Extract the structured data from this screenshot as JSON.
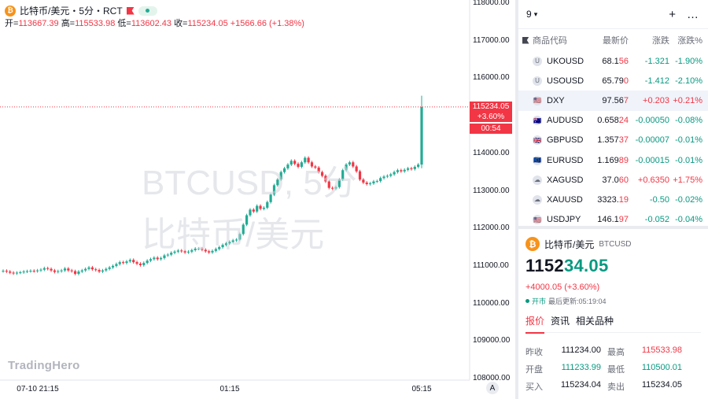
{
  "chart": {
    "title": "比特币/美元・5分・RCT",
    "ohlc": {
      "open_label": "开=",
      "open": "113667.39",
      "high_label": "高=",
      "high": "115533.98",
      "low_label": "低=",
      "low": "113602.43",
      "close_label": "收=",
      "close": "115234.05",
      "change": "+1566.66 (+1.38%)"
    },
    "watermark_symbol": "BTCUSD, 5分",
    "watermark_name": "比特币/美元",
    "brand": "TradingHero",
    "current_price": "115234.05",
    "current_change": "+3.60%",
    "countdown": "00:54",
    "y_ticks": [
      "118000.00",
      "117000.00",
      "116000.00",
      "114000.00",
      "113000.00",
      "112000.00",
      "111000.00",
      "110000.00",
      "109000.00",
      "108000.00"
    ],
    "x_ticks": [
      "07-10 21:15",
      "01:15",
      "05:15"
    ],
    "a_button": "A",
    "colors": {
      "up": "#22ab94",
      "down": "#f23645"
    }
  },
  "chart_data": {
    "type": "candlestick",
    "ylim": [
      108000,
      118000
    ],
    "last_close": 115234.05,
    "closes": [
      110870,
      110850,
      110820,
      110800,
      110820,
      110830,
      110850,
      110860,
      110870,
      110860,
      110880,
      110900,
      110940,
      110920,
      110880,
      110840,
      110860,
      110880,
      110930,
      110880,
      110860,
      110790,
      110850,
      110880,
      110920,
      110960,
      110910,
      110890,
      110850,
      110880,
      110920,
      110960,
      111000,
      111050,
      111100,
      111080,
      111120,
      111160,
      111100,
      111060,
      111020,
      111080,
      111140,
      111180,
      111220,
      111180,
      111210,
      111280,
      111300,
      111350,
      111380,
      111410,
      111390,
      111360,
      111380,
      111420,
      111460,
      111460,
      111430,
      111390,
      111360,
      111400,
      111450,
      111500,
      111560,
      111600,
      111640,
      111680,
      111700,
      111850,
      112100,
      112350,
      112500,
      112450,
      112600,
      112520,
      112550,
      112700,
      112900,
      113150,
      113300,
      113500,
      113600,
      113700,
      113800,
      113720,
      113640,
      113760,
      113880,
      113760,
      113650,
      113620,
      113500,
      113400,
      113250,
      113080,
      113060,
      113100,
      113300,
      113550,
      113700,
      113760,
      113650,
      113520,
      113300,
      113220,
      113180,
      113200,
      113250,
      113260,
      113340,
      113380,
      113400,
      113440,
      113500,
      113550,
      113520,
      113560,
      113600,
      113580,
      113640,
      113700,
      115234
    ],
    "high": 115533.98,
    "low": 110500.01
  },
  "watchlist": {
    "selector": "9",
    "add_icon": "+",
    "more_icon": "…",
    "headers": [
      "商品代码",
      "最新价",
      "涨跌",
      "涨跌%"
    ],
    "rows": [
      {
        "sym": "UKOUSD",
        "icon": "U",
        "price_a": "68.1",
        "price_b": "56",
        "chg": "-1.321",
        "pct": "-1.90%",
        "dir": "dn"
      },
      {
        "sym": "USOUSD",
        "icon": "U",
        "price_a": "65.79",
        "price_b": "0",
        "chg": "-1.412",
        "pct": "-2.10%",
        "dir": "dn"
      },
      {
        "sym": "DXY",
        "icon": "🇺🇸",
        "price_a": "97.56",
        "price_b": "7",
        "chg": "+0.203",
        "pct": "+0.21%",
        "dir": "up",
        "flag": true
      },
      {
        "sym": "AUDUSD",
        "icon": "🇦🇺",
        "price_a": "0.658",
        "price_b": "24",
        "chg": "-0.00050",
        "pct": "-0.08%",
        "dir": "dn"
      },
      {
        "sym": "GBPUSD",
        "icon": "🇬🇧",
        "price_a": "1.357",
        "price_b": "37",
        "chg": "-0.00007",
        "pct": "-0.01%",
        "dir": "dn"
      },
      {
        "sym": "EURUSD",
        "icon": "🇪🇺",
        "price_a": "1.169",
        "price_b": "89",
        "chg": "-0.00015",
        "pct": "-0.01%",
        "dir": "dn"
      },
      {
        "sym": "XAGUSD",
        "icon": "☁",
        "price_a": "37.0",
        "price_b": "60",
        "chg": "+0.6350",
        "pct": "+1.75%",
        "dir": "up"
      },
      {
        "sym": "XAUUSD",
        "icon": "☁",
        "price_a": "3323.",
        "price_b": "19",
        "chg": "-0.50",
        "pct": "-0.02%",
        "dir": "dn"
      },
      {
        "sym": "USDJPY",
        "icon": "🇺🇸",
        "price_a": "146.1",
        "price_b": "97",
        "chg": "-0.052",
        "pct": "-0.04%",
        "dir": "dn"
      }
    ]
  },
  "detail": {
    "name": "比特币/美元",
    "code": "BTCUSD",
    "price_head": "1152",
    "price_tail": "34.05",
    "change": "+4000.05 (+3.60%)",
    "status": "开市",
    "updated": "最后更新:05:19:04",
    "tabs": [
      "报价",
      "资讯",
      "相关品种"
    ],
    "stats": [
      {
        "l1": "昨收",
        "v1": "111234.00",
        "l2": "最高",
        "v2": "115533.98",
        "c2": "up"
      },
      {
        "l1": "开盘",
        "v1": "111233.99",
        "l2": "最低",
        "v2": "110500.01",
        "c2": "dn"
      },
      {
        "l1": "买入",
        "v1": "115234.04",
        "l2": "卖出",
        "v2": "115234.05",
        "c2": ""
      }
    ]
  }
}
